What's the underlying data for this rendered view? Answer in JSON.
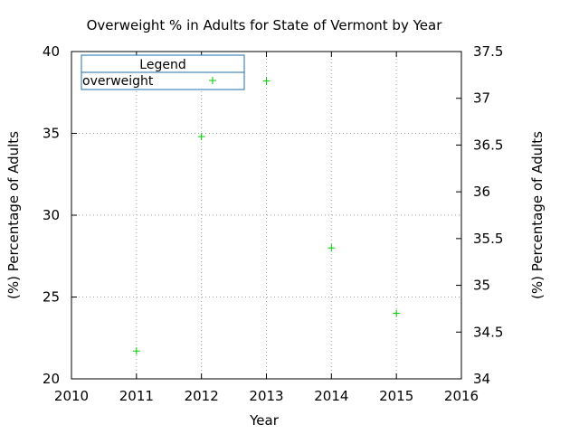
{
  "chart_data": {
    "type": "scatter",
    "title": "Overweight % in Adults for State of Vermont by Year",
    "xlabel": "Year",
    "ylabel": "(%) Percentage of Adults",
    "y2label": "(%) Percentage of Adults",
    "xlim": [
      2010,
      2016
    ],
    "ylim": [
      20,
      40
    ],
    "y2lim": [
      34,
      37.5
    ],
    "x_ticks": [
      2010,
      2011,
      2012,
      2013,
      2014,
      2015,
      2016
    ],
    "y_ticks": [
      20,
      25,
      30,
      35,
      40
    ],
    "y2_ticks": [
      "34",
      "34.5",
      "35",
      "35.5",
      "36",
      "36.5",
      "37",
      "37.5"
    ],
    "grid": true,
    "legend": {
      "title": "Legend",
      "position": "top-left"
    },
    "series": [
      {
        "name": "overweight",
        "color": "#00cc00",
        "marker": "+",
        "points": [
          {
            "x": 2011,
            "y": 21.7
          },
          {
            "x": 2012,
            "y": 34.8
          },
          {
            "x": 2013,
            "y": 38.2
          },
          {
            "x": 2014,
            "y": 28.0
          },
          {
            "x": 2015,
            "y": 24.0
          }
        ]
      }
    ]
  }
}
